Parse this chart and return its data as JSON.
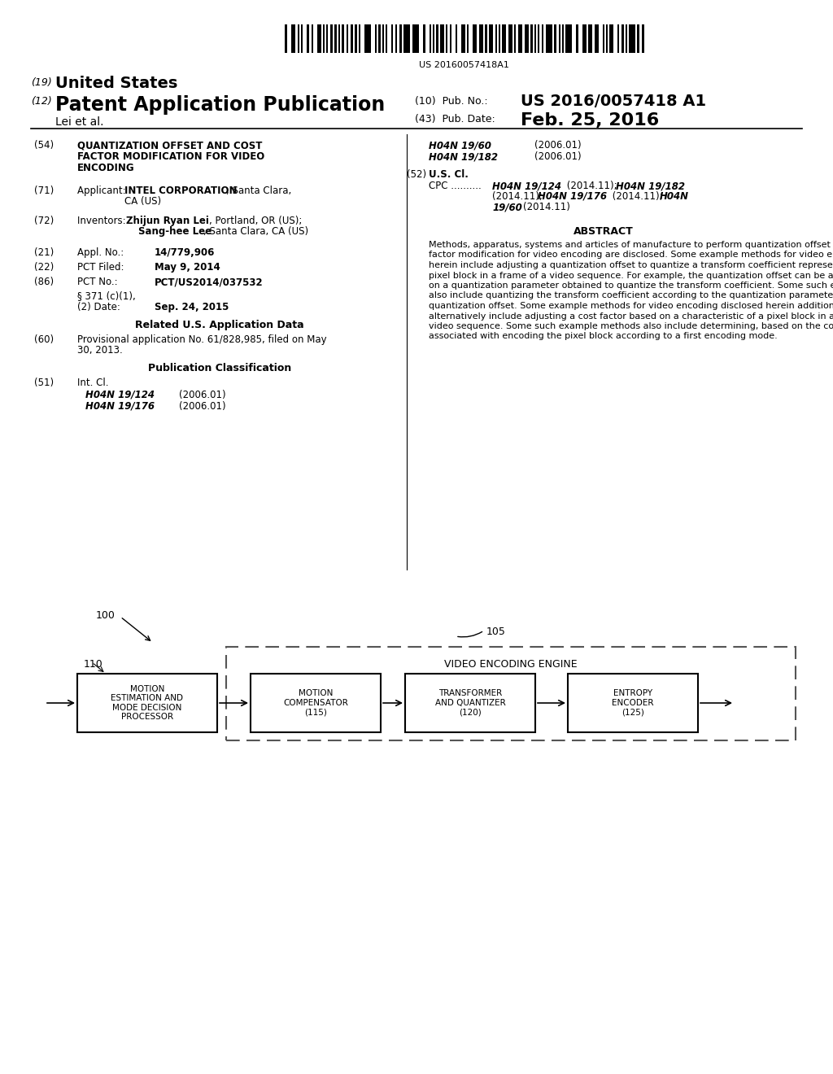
{
  "bg_color": "#ffffff",
  "barcode_text": "US 20160057418A1",
  "header_19": "(19)",
  "header_19_bold": "United States",
  "header_12": "(12)",
  "header_12_bold": "Patent Application Publication",
  "header_lei": "Lei et al.",
  "header_10_label": "(10)  Pub. No.:",
  "header_10_value": "US 2016/0057418 A1",
  "header_43_label": "(43)  Pub. Date:",
  "header_43_value": "Feb. 25, 2016",
  "abstract_text": "Methods, apparatus, systems and articles of manufacture to perform quantization offset and/or cost factor modification for video encoding are disclosed. Some example methods for video encoding disclosed herein include adjusting a quantization offset to quantize a transform coefficient representative of a pixel block in a frame of a video sequence. For example, the quantization offset can be adjusted based on a quantization parameter obtained to quantize the transform coefficient. Some such example methods also include quantizing the transform coefficient according to the quantization parameter and the quantization offset. Some example methods for video encoding disclosed herein additionally or alternatively include adjusting a cost factor based on a characteristic of a pixel block in a frame of a video sequence. Some such example methods also include determining, based on the cost factor, a cost associated with encoding the pixel block according to a first encoding mode.",
  "diagram_label_100": "100",
  "diagram_label_105": "105",
  "diagram_engine_label": "VIDEO ENCODING ENGINE",
  "box_110_label": "110",
  "box_110_text": "MOTION\nESTIMATION AND\nMODE DECISION\nPROCESSOR",
  "box_115_text": "MOTION\nCOMPENSATOR\n(115)",
  "box_120_text": "TRANSFORMER\nAND QUANTIZER\n(120)",
  "box_125_text": "ENTROPY\nENCODER\n(125)"
}
